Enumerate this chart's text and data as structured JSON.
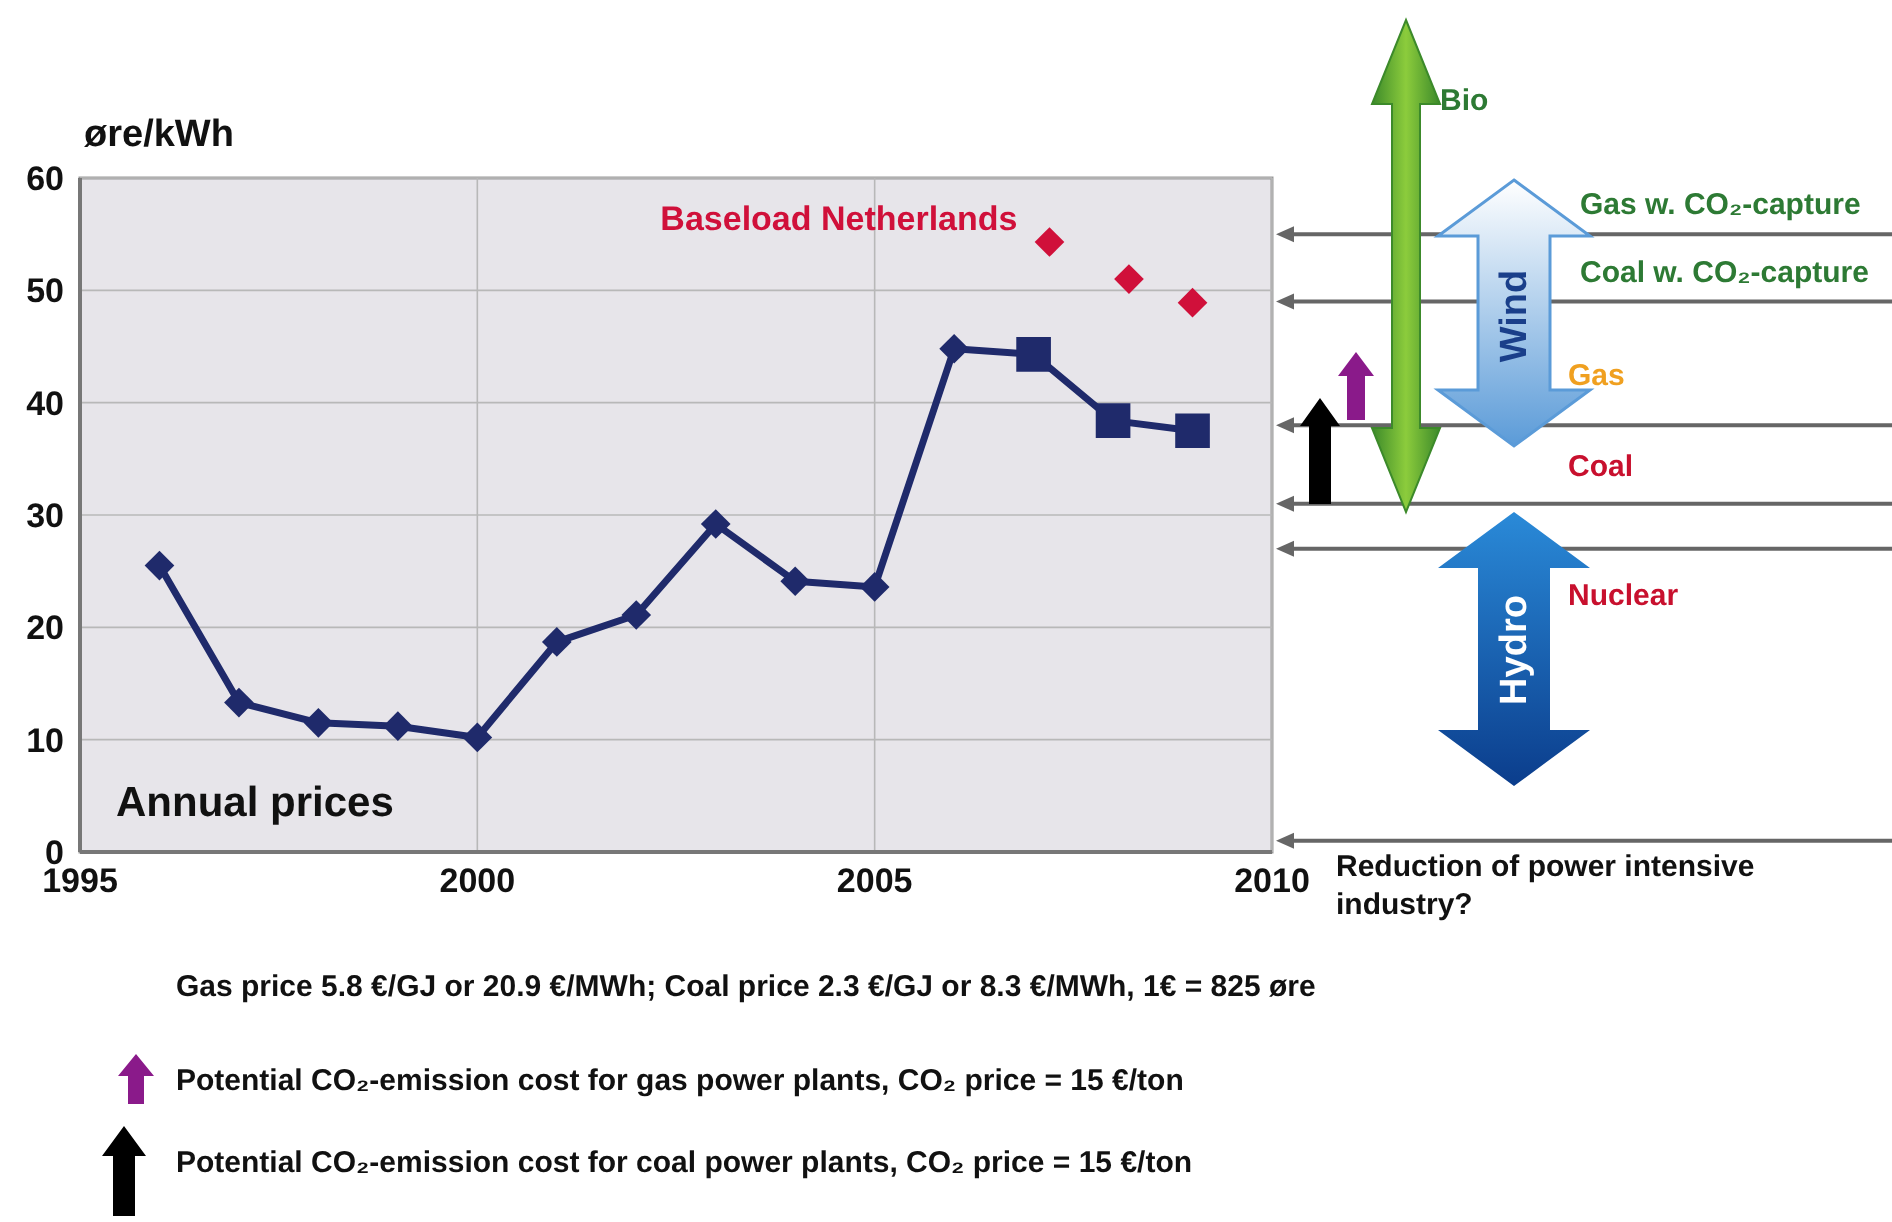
{
  "chart_data": {
    "type": "line",
    "ylabel": "øre/kWh",
    "xlim": [
      1995,
      2010
    ],
    "ylim": [
      0,
      60
    ],
    "xticks": [
      1995,
      2000,
      2005,
      2010
    ],
    "yticks": [
      0,
      10,
      20,
      30,
      40,
      50,
      60
    ],
    "grid": true,
    "series": [
      {
        "name": "Annual prices",
        "color": "#1f2a6b",
        "marker": "none",
        "x": [
          1996,
          1997,
          1998,
          1999,
          2000,
          2001,
          2002,
          2003,
          2004,
          2005,
          2006,
          2007,
          2008,
          2009
        ],
        "values": [
          25.5,
          13.3,
          11.5,
          11.2,
          10.2,
          18.7,
          21.1,
          29.2,
          24.1,
          23.6,
          44.8,
          44.3,
          38.4,
          37.5
        ]
      },
      {
        "type": "scatter",
        "color": "#1f2a6b",
        "marker": "diamond",
        "x": [
          1996,
          1997,
          1998,
          1999,
          2000,
          2001,
          2002,
          2003,
          2004,
          2005,
          2006
        ],
        "values": [
          25.5,
          13.3,
          11.5,
          11.2,
          10.2,
          18.7,
          21.1,
          29.2,
          24.1,
          23.6,
          44.8
        ]
      },
      {
        "type": "scatter",
        "color": "#1f2a6b",
        "marker": "square",
        "x": [
          2007,
          2008,
          2009
        ],
        "values": [
          44.3,
          38.4,
          37.5
        ]
      },
      {
        "type": "scatter",
        "name": "Baseload Netherlands",
        "color": "#d0103a",
        "marker": "diamond",
        "x": [
          2007.2,
          2008.2,
          2009
        ],
        "values": [
          54.3,
          51.0,
          48.9
        ]
      }
    ],
    "ref_lines": [
      {
        "axis": "y",
        "value": 55,
        "label": "Gas w. CO₂-capture",
        "color": "#666666"
      },
      {
        "axis": "y",
        "value": 49,
        "label": "Coal w. CO₂-capture",
        "color": "#666666"
      },
      {
        "axis": "y",
        "value": 38,
        "label": "Gas",
        "color": "#666666"
      },
      {
        "axis": "y",
        "value": 31,
        "label": "Coal",
        "color": "#666666"
      },
      {
        "axis": "y",
        "value": 27,
        "label": "Nuclear",
        "color": "#666666"
      },
      {
        "axis": "y",
        "value": 1,
        "label": "Reduction of power intensive industry?",
        "color": "#666666"
      }
    ],
    "annotations": [
      "Bio",
      "Wind",
      "Hydro",
      "Gas price 5.8 €/GJ or 20.9 €/MWh;  Coal price 2.3 €/GJ or 8.3 €/MWh, 1€ = 825 øre",
      "Potential CO₂-emission cost for gas power plants, CO₂ price = 15 €/ton",
      "Potential CO₂-emission cost for coal power plants, CO₂ price = 15 €/ton"
    ]
  }
}
